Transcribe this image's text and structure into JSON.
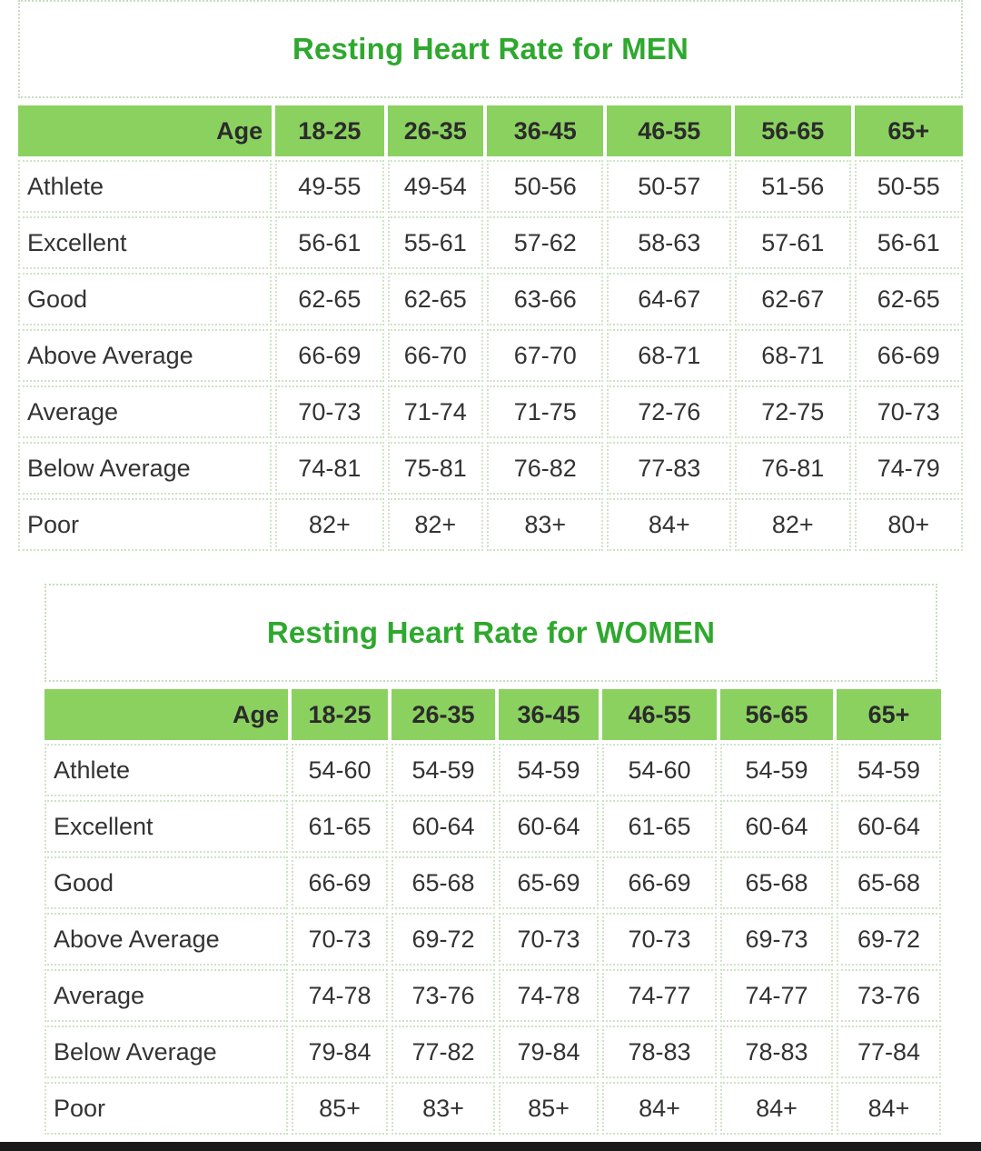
{
  "men": {
    "title": "Resting Heart Rate for MEN",
    "age_label": "Age",
    "age_groups": [
      "18-25",
      "26-35",
      "36-45",
      "46-55",
      "56-65",
      "65+"
    ],
    "rows": [
      {
        "label": "Athlete",
        "values": [
          "49-55",
          "49-54",
          "50-56",
          "50-57",
          "51-56",
          "50-55"
        ]
      },
      {
        "label": "Excellent",
        "values": [
          "56-61",
          "55-61",
          "57-62",
          "58-63",
          "57-61",
          "56-61"
        ]
      },
      {
        "label": "Good",
        "values": [
          "62-65",
          "62-65",
          "63-66",
          "64-67",
          "62-67",
          "62-65"
        ]
      },
      {
        "label": "Above Average",
        "values": [
          "66-69",
          "66-70",
          "67-70",
          "68-71",
          "68-71",
          "66-69"
        ]
      },
      {
        "label": "Average",
        "values": [
          "70-73",
          "71-74",
          "71-75",
          "72-76",
          "72-75",
          "70-73"
        ]
      },
      {
        "label": "Below Average",
        "values": [
          "74-81",
          "75-81",
          "76-82",
          "77-83",
          "76-81",
          "74-79"
        ]
      },
      {
        "label": "Poor",
        "values": [
          "82+",
          "82+",
          "83+",
          "84+",
          "82+",
          "80+"
        ]
      }
    ]
  },
  "women": {
    "title": "Resting Heart Rate for WOMEN",
    "age_label": "Age",
    "age_groups": [
      "18-25",
      "26-35",
      "36-45",
      "46-55",
      "56-65",
      "65+"
    ],
    "rows": [
      {
        "label": "Athlete",
        "values": [
          "54-60",
          "54-59",
          "54-59",
          "54-60",
          "54-59",
          "54-59"
        ]
      },
      {
        "label": "Excellent",
        "values": [
          "61-65",
          "60-64",
          "60-64",
          "61-65",
          "60-64",
          "60-64"
        ]
      },
      {
        "label": "Good",
        "values": [
          "66-69",
          "65-68",
          "65-69",
          "66-69",
          "65-68",
          "65-68"
        ]
      },
      {
        "label": "Above Average",
        "values": [
          "70-73",
          "69-72",
          "70-73",
          "70-73",
          "69-73",
          "69-72"
        ]
      },
      {
        "label": "Average",
        "values": [
          "74-78",
          "73-76",
          "74-78",
          "74-77",
          "74-77",
          "73-76"
        ]
      },
      {
        "label": "Below Average",
        "values": [
          "79-84",
          "77-82",
          "79-84",
          "78-83",
          "78-83",
          "77-84"
        ]
      },
      {
        "label": "Poor",
        "values": [
          "85+",
          "83+",
          "85+",
          "84+",
          "84+",
          "84+"
        ]
      }
    ]
  },
  "colors": {
    "title_green": "#2ea82e",
    "header_green": "#8bd160",
    "cell_border": "#cfe3c6"
  }
}
